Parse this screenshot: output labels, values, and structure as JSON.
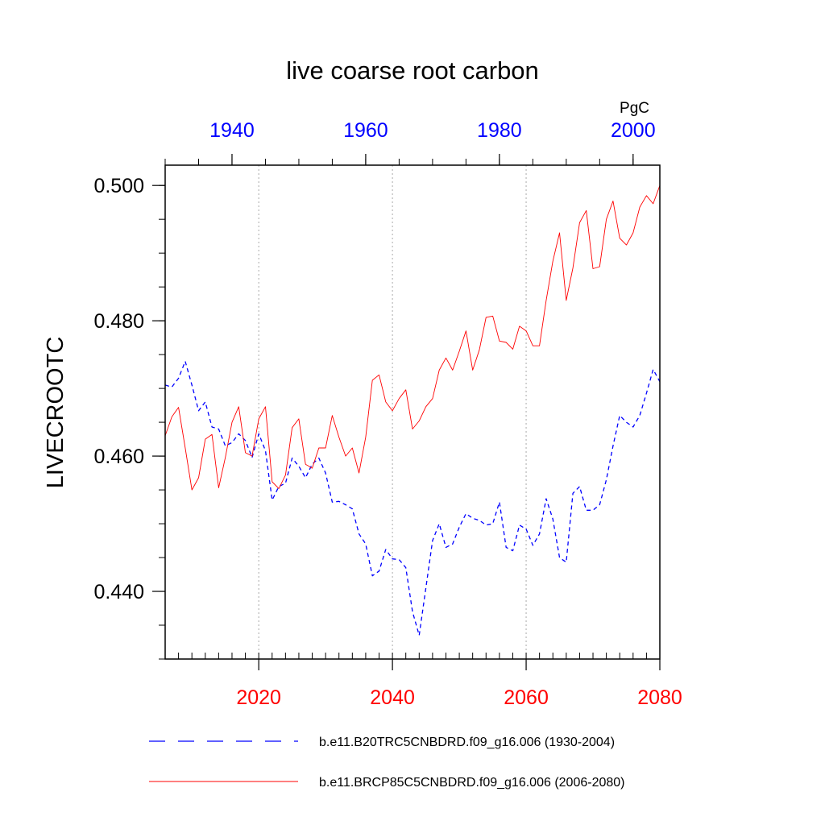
{
  "chart_data": {
    "type": "line",
    "title": "live coarse root carbon",
    "units_label": "PgC",
    "ylabel": "LIVECROOTC",
    "ylim": [
      0.43,
      0.503
    ],
    "y_ticks": [
      0.44,
      0.46,
      0.48,
      0.5
    ],
    "y_tick_labels": [
      "0.440",
      "0.460",
      "0.480",
      "0.500"
    ],
    "y_minor_step": 0.005,
    "grid": "vertical dotted at bottom-axis major ticks",
    "bottom_axis": {
      "range": [
        2006,
        2080
      ],
      "ticks": [
        2020,
        2040,
        2060,
        2080
      ],
      "tick_labels": [
        "2020",
        "2040",
        "2060",
        "2080"
      ],
      "minor_step": 2,
      "color": "#ff0000"
    },
    "top_axis": {
      "range": [
        1930,
        2004
      ],
      "ticks": [
        1940,
        1960,
        1980,
        2000
      ],
      "tick_labels": [
        "1940",
        "1960",
        "1980",
        "2000"
      ],
      "minor_step": 5,
      "color": "#0000ff"
    },
    "series": [
      {
        "name": "b.e11.B20TRC5CNBDRD.f09_g16.006 (1930-2004)",
        "axis": "top",
        "color": "#0000ff",
        "dash": "dashed",
        "x": [
          1930,
          1931,
          1932,
          1933,
          1934,
          1935,
          1936,
          1937,
          1938,
          1939,
          1940,
          1941,
          1942,
          1943,
          1944,
          1945,
          1946,
          1947,
          1948,
          1949,
          1950,
          1951,
          1952,
          1953,
          1954,
          1955,
          1956,
          1957,
          1958,
          1959,
          1960,
          1961,
          1962,
          1963,
          1964,
          1965,
          1966,
          1967,
          1968,
          1969,
          1970,
          1971,
          1972,
          1973,
          1974,
          1975,
          1976,
          1977,
          1978,
          1979,
          1980,
          1981,
          1982,
          1983,
          1984,
          1985,
          1986,
          1987,
          1988,
          1989,
          1990,
          1991,
          1992,
          1993,
          1994,
          1995,
          1996,
          1997,
          1998,
          1999,
          2000,
          2001,
          2002,
          2003,
          2004
        ],
        "values": [
          0.4705,
          0.4702,
          0.4715,
          0.474,
          0.4705,
          0.4667,
          0.468,
          0.4643,
          0.464,
          0.4615,
          0.462,
          0.4633,
          0.4623,
          0.4598,
          0.4633,
          0.4608,
          0.4535,
          0.4555,
          0.456,
          0.4597,
          0.4585,
          0.4568,
          0.4588,
          0.4597,
          0.4575,
          0.4532,
          0.4533,
          0.4528,
          0.4522,
          0.4485,
          0.447,
          0.4423,
          0.443,
          0.4462,
          0.4448,
          0.4447,
          0.4435,
          0.437,
          0.4335,
          0.4405,
          0.4475,
          0.45,
          0.4465,
          0.447,
          0.4495,
          0.4515,
          0.4508,
          0.4505,
          0.4498,
          0.45,
          0.4532,
          0.4465,
          0.446,
          0.4498,
          0.4492,
          0.4468,
          0.4485,
          0.4537,
          0.4507,
          0.445,
          0.4443,
          0.4545,
          0.4555,
          0.452,
          0.452,
          0.4528,
          0.4565,
          0.4615,
          0.466,
          0.465,
          0.4643,
          0.466,
          0.4693,
          0.4728,
          0.471
        ]
      },
      {
        "name": "b.e11.BRCP85C5CNBDRD.f09_g16.006 (2006-2080)",
        "axis": "bottom",
        "color": "#ff0000",
        "dash": "solid",
        "x": [
          2006,
          2007,
          2008,
          2009,
          2010,
          2011,
          2012,
          2013,
          2014,
          2015,
          2016,
          2017,
          2018,
          2019,
          2020,
          2021,
          2022,
          2023,
          2024,
          2025,
          2026,
          2027,
          2028,
          2029,
          2030,
          2031,
          2032,
          2033,
          2034,
          2035,
          2036,
          2037,
          2038,
          2039,
          2040,
          2041,
          2042,
          2043,
          2044,
          2045,
          2046,
          2047,
          2048,
          2049,
          2050,
          2051,
          2052,
          2053,
          2054,
          2055,
          2056,
          2057,
          2058,
          2059,
          2060,
          2061,
          2062,
          2063,
          2064,
          2065,
          2066,
          2067,
          2068,
          2069,
          2070,
          2071,
          2072,
          2073,
          2074,
          2075,
          2076,
          2077,
          2078,
          2079,
          2080
        ],
        "values": [
          0.463,
          0.4658,
          0.4672,
          0.4612,
          0.455,
          0.4568,
          0.4625,
          0.4632,
          0.4553,
          0.4598,
          0.465,
          0.4673,
          0.4605,
          0.46,
          0.4655,
          0.4673,
          0.4562,
          0.4552,
          0.4572,
          0.4642,
          0.4655,
          0.4588,
          0.4582,
          0.4612,
          0.4612,
          0.466,
          0.4628,
          0.46,
          0.4612,
          0.4575,
          0.4628,
          0.4712,
          0.472,
          0.468,
          0.4667,
          0.4685,
          0.4698,
          0.464,
          0.4652,
          0.4673,
          0.4685,
          0.4727,
          0.4745,
          0.4727,
          0.4755,
          0.4785,
          0.4727,
          0.4757,
          0.4805,
          0.4807,
          0.477,
          0.4768,
          0.4758,
          0.4792,
          0.4785,
          0.4763,
          0.4763,
          0.483,
          0.4888,
          0.493,
          0.483,
          0.4878,
          0.4945,
          0.4963,
          0.4877,
          0.488,
          0.495,
          0.4977,
          0.4922,
          0.4912,
          0.493,
          0.4968,
          0.4985,
          0.4973,
          0.5
        ]
      }
    ]
  }
}
